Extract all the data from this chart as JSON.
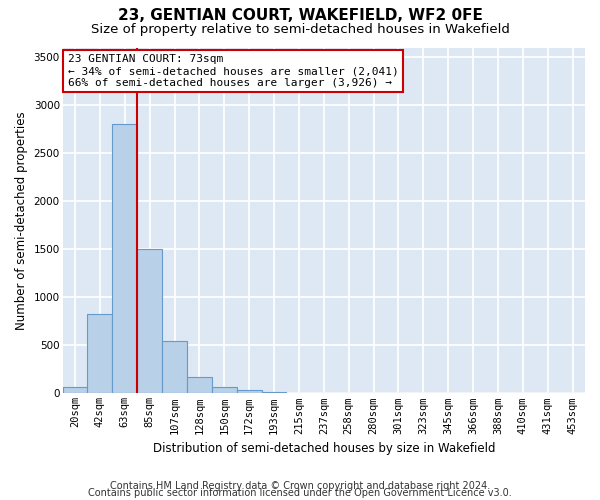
{
  "title": "23, GENTIAN COURT, WAKEFIELD, WF2 0FE",
  "subtitle": "Size of property relative to semi-detached houses in Wakefield",
  "xlabel": "Distribution of semi-detached houses by size in Wakefield",
  "ylabel": "Number of semi-detached properties",
  "footnote1": "Contains HM Land Registry data © Crown copyright and database right 2024.",
  "footnote2": "Contains public sector information licensed under the Open Government Licence v3.0.",
  "bar_labels": [
    "20sqm",
    "42sqm",
    "63sqm",
    "85sqm",
    "107sqm",
    "128sqm",
    "150sqm",
    "172sqm",
    "193sqm",
    "215sqm",
    "237sqm",
    "258sqm",
    "280sqm",
    "301sqm",
    "323sqm",
    "345sqm",
    "366sqm",
    "388sqm",
    "410sqm",
    "431sqm",
    "453sqm"
  ],
  "bar_values": [
    65,
    830,
    2800,
    1500,
    545,
    175,
    65,
    40,
    18,
    5,
    2,
    0,
    0,
    0,
    0,
    0,
    0,
    0,
    0,
    0,
    0
  ],
  "bar_color": "#b8d0e8",
  "bar_edge_color": "#6699cc",
  "background_color": "#dde8f4",
  "grid_color": "#ffffff",
  "ylim_max": 3600,
  "vline_color": "#cc0000",
  "vline_x_index": 2.5,
  "annotation_text1": "23 GENTIAN COURT: 73sqm",
  "annotation_text2": "← 34% of semi-detached houses are smaller (2,041)",
  "annotation_text3": "66% of semi-detached houses are larger (3,926) →",
  "annotation_box_color": "#ffffff",
  "annotation_box_edge": "#cc0000",
  "title_fontsize": 11,
  "subtitle_fontsize": 9.5,
  "axis_label_fontsize": 8.5,
  "tick_fontsize": 7.5,
  "annotation_fontsize": 8,
  "footnote_fontsize": 7
}
